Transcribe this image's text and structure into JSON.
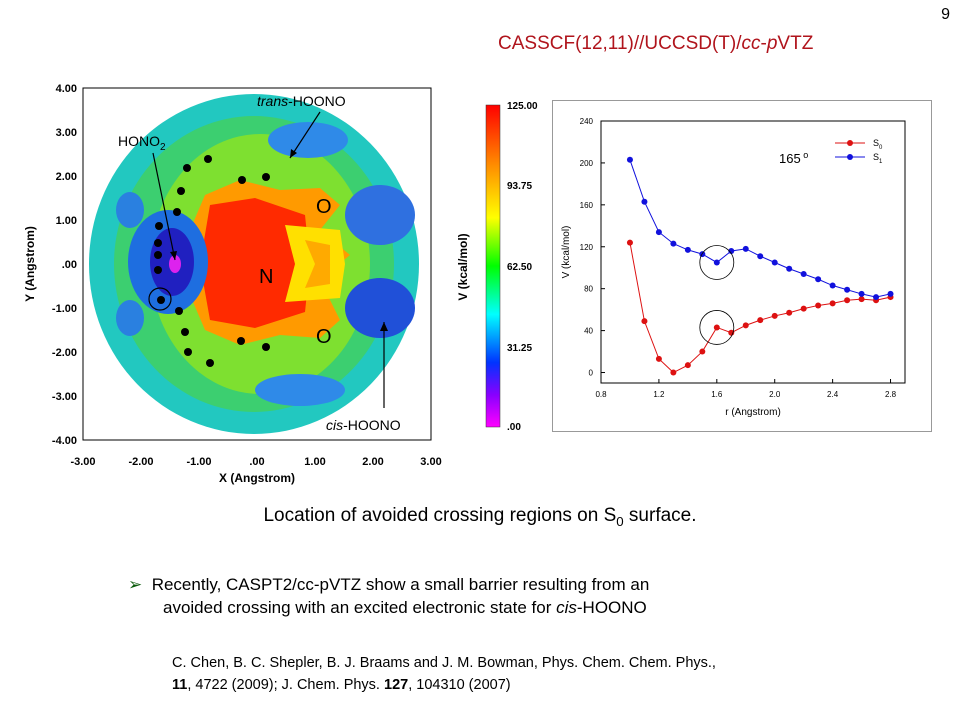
{
  "slide_number": "9",
  "method": {
    "part1": "CASSCF(12,11)//UCCSD(T)/",
    "italic1": "cc",
    "part2": "-",
    "italic2": "p",
    "part3": "VTZ"
  },
  "contour": {
    "xlabel": "X (Angstrom)",
    "ylabel": "Y (Angstrom)",
    "xticks": [
      "-3.00",
      "-2.00",
      "-1.00",
      ".00",
      "1.00",
      "2.00",
      "3.00"
    ],
    "yticks": [
      "4.00",
      "3.00",
      "2.00",
      "1.00",
      ".00",
      "-1.00",
      "-2.00",
      "-3.00",
      "-4.00"
    ],
    "label_trans_italic": "trans",
    "label_trans_rest": "-HOONO",
    "label_cis_italic": "cis",
    "label_cis_rest": "-HOONO",
    "label_hono2_main": "HONO",
    "label_hono2_sub": "2",
    "atom_o_top": "O",
    "atom_o_bottom": "O",
    "atom_n": "N"
  },
  "colorbar": {
    "label": "V (kcal/mol)",
    "ticks": [
      "125.00",
      "93.75",
      "62.50",
      "31.25",
      ".00"
    ],
    "colors": [
      "#ff0000",
      "#ff8800",
      "#ffff00",
      "#00ff00",
      "#00ffff",
      "#0033ff",
      "#8800ff",
      "#ff00ff"
    ]
  },
  "chart_data": {
    "type": "line",
    "xlabel": "r (Angstrom)",
    "ylabel": "V (kcal/mol)",
    "xlim": [
      0.8,
      2.9
    ],
    "ylim": [
      -10,
      240
    ],
    "xticks": [
      0.8,
      1.2,
      1.6,
      2.0,
      2.4,
      2.8
    ],
    "yticks": [
      0,
      40,
      80,
      120,
      160,
      200,
      240
    ],
    "annotation_main": "165",
    "annotation_sup": "o",
    "legend_position": "top-right",
    "series": [
      {
        "name_main": "S",
        "name_sub": "0",
        "color": "#dd1111",
        "x": [
          1.0,
          1.1,
          1.2,
          1.3,
          1.4,
          1.5,
          1.6,
          1.7,
          1.8,
          1.9,
          2.0,
          2.1,
          2.2,
          2.3,
          2.4,
          2.5,
          2.6,
          2.7,
          2.8
        ],
        "y": [
          124,
          49,
          13,
          0,
          7,
          20,
          43,
          38,
          45,
          50,
          54,
          57,
          61,
          64,
          66,
          69,
          70,
          69,
          72
        ]
      },
      {
        "name_main": "S",
        "name_sub": "1",
        "color": "#1111dd",
        "x": [
          1.0,
          1.1,
          1.2,
          1.3,
          1.4,
          1.5,
          1.6,
          1.7,
          1.8,
          1.9,
          2.0,
          2.1,
          2.2,
          2.3,
          2.4,
          2.5,
          2.6,
          2.7,
          2.8
        ],
        "y": [
          203,
          163,
          134,
          123,
          117,
          113,
          105,
          116,
          118,
          111,
          105,
          99,
          94,
          89,
          83,
          79,
          75,
          72,
          75
        ]
      }
    ]
  },
  "caption": {
    "main": "Location of avoided crossing regions on S",
    "sub": "0",
    "end": " surface."
  },
  "bullet": {
    "line1": "Recently, CASPT2/cc-pVTZ show a small barrier resulting from an",
    "line2_start": "avoided crossing with an excited electronic state for ",
    "line2_italic": "cis",
    "line2_end": "-HOONO"
  },
  "reference": {
    "line1": "C. Chen, B. C. Shepler, B. J. Braams and J. M. Bowman, Phys. Chem. Chem. Phys.,",
    "vol1": "11",
    "mid": ", 4722 (2009); J. Chem. Phys. ",
    "vol2": "127",
    "end": ", 104310 (2007)"
  }
}
